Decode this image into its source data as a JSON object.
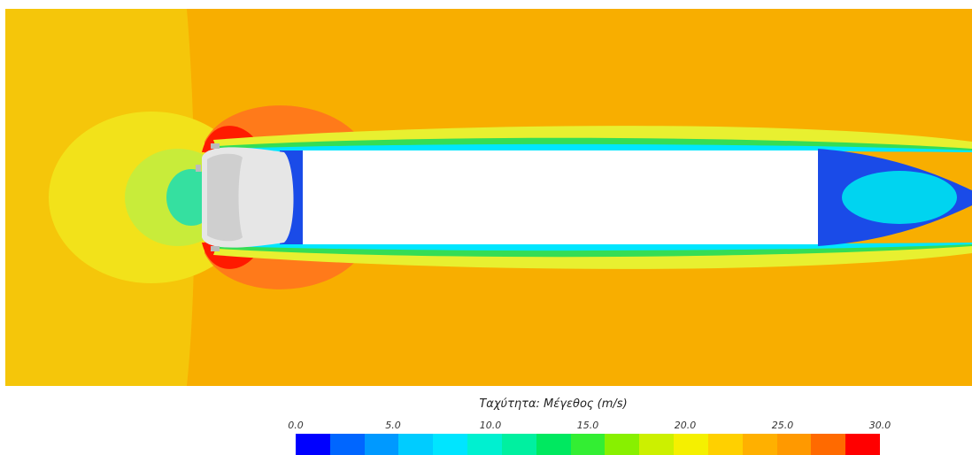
{
  "figure": {
    "colorbar": {
      "title": "Ταχύτητα: Μέγεθος (m/s)",
      "ticks": [
        "0.0",
        "5.0",
        "10.0",
        "15.0",
        "20.0",
        "25.0",
        "30.0"
      ],
      "min": 0,
      "max": 30,
      "colors": [
        "#0000ff",
        "#0066ff",
        "#0099ff",
        "#00ccff",
        "#00e5ff",
        "#00f0d0",
        "#00f0a0",
        "#00e860",
        "#33ee33",
        "#88f000",
        "#ccf000",
        "#f5f000",
        "#ffd000",
        "#ffb000",
        "#ff9900",
        "#ff6a00",
        "#ff0000"
      ]
    },
    "palette": {
      "freestream": "#f8ae00",
      "upstream_yellow": "#f2e21a",
      "body": "#ffffff",
      "cab": "#e6e6e6",
      "wake_low": "#1a4be8",
      "wake_core": "#00d4f0",
      "shear_green": "#35dd55",
      "shear_cyan": "#00e6ff",
      "shear_yellow": "#e8f030",
      "accel_orange": "#ff7a1a",
      "accel_red": "#ff1a00"
    }
  }
}
